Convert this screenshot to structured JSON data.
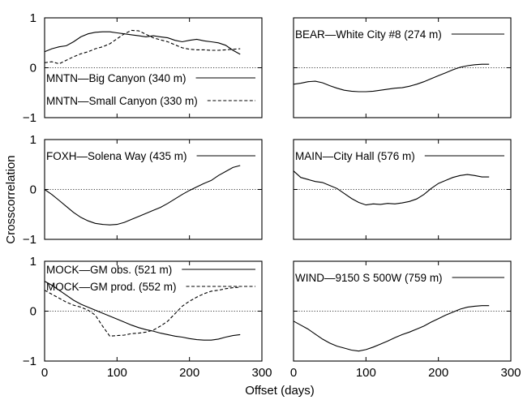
{
  "figure": {
    "ylabel": "Crosscorrelation",
    "xlabel": "Offset (days)"
  },
  "chart_data": [
    {
      "type": "line",
      "xlim": [
        0,
        300
      ],
      "ylim": [
        -1,
        1
      ],
      "xticks": [
        "",
        "",
        "",
        ""
      ],
      "yticks": [
        "−1",
        "0",
        "1"
      ],
      "series": [
        {
          "name": "MNTN—Big Canyon (340 m)",
          "style": "solid",
          "x": [
            0,
            10,
            20,
            30,
            40,
            50,
            60,
            70,
            80,
            90,
            100,
            110,
            120,
            130,
            140,
            150,
            160,
            170,
            180,
            190,
            200,
            210,
            220,
            230,
            240,
            250,
            260,
            270
          ],
          "y": [
            0.32,
            0.38,
            0.42,
            0.44,
            0.52,
            0.62,
            0.68,
            0.71,
            0.72,
            0.72,
            0.7,
            0.68,
            0.66,
            0.64,
            0.62,
            0.64,
            0.62,
            0.6,
            0.55,
            0.52,
            0.55,
            0.57,
            0.54,
            0.52,
            0.5,
            0.45,
            0.35,
            0.27
          ]
        },
        {
          "name": "MNTN—Small Canyon (330 m)",
          "style": "dashed",
          "x": [
            0,
            10,
            20,
            30,
            40,
            50,
            60,
            70,
            80,
            90,
            100,
            110,
            120,
            130,
            140,
            150,
            160,
            170,
            180,
            190,
            200,
            210,
            220,
            230,
            240,
            250,
            260,
            270
          ],
          "y": [
            0.1,
            0.12,
            0.08,
            0.15,
            0.22,
            0.28,
            0.32,
            0.38,
            0.42,
            0.48,
            0.58,
            0.68,
            0.75,
            0.74,
            0.67,
            0.6,
            0.56,
            0.52,
            0.46,
            0.4,
            0.37,
            0.36,
            0.36,
            0.35,
            0.35,
            0.36,
            0.37,
            0.38
          ]
        }
      ]
    },
    {
      "type": "line",
      "xlim": [
        0,
        300
      ],
      "ylim": [
        -1,
        1
      ],
      "xticks": [
        "",
        "",
        "",
        ""
      ],
      "yticks": [
        "",
        "",
        ""
      ],
      "series": [
        {
          "name": "BEAR—White City #8 (274 m)",
          "style": "solid",
          "x": [
            0,
            10,
            20,
            30,
            40,
            50,
            60,
            70,
            80,
            90,
            100,
            110,
            120,
            130,
            140,
            150,
            160,
            170,
            180,
            190,
            200,
            210,
            220,
            230,
            240,
            250,
            260,
            270
          ],
          "y": [
            -0.33,
            -0.31,
            -0.28,
            -0.27,
            -0.3,
            -0.36,
            -0.41,
            -0.45,
            -0.47,
            -0.48,
            -0.48,
            -0.47,
            -0.45,
            -0.43,
            -0.41,
            -0.4,
            -0.37,
            -0.33,
            -0.28,
            -0.22,
            -0.16,
            -0.1,
            -0.04,
            0.01,
            0.04,
            0.06,
            0.07,
            0.07
          ]
        }
      ]
    },
    {
      "type": "line",
      "xlim": [
        0,
        300
      ],
      "ylim": [
        -1,
        1
      ],
      "xticks": [
        "",
        "",
        "",
        ""
      ],
      "yticks": [
        "−1",
        "0",
        "1"
      ],
      "series": [
        {
          "name": "FOXH—Solena Way (435 m)",
          "style": "solid",
          "x": [
            0,
            10,
            20,
            30,
            40,
            50,
            60,
            70,
            80,
            90,
            100,
            110,
            120,
            130,
            140,
            150,
            160,
            170,
            180,
            190,
            200,
            210,
            220,
            230,
            240,
            250,
            260,
            270
          ],
          "y": [
            0.0,
            -0.1,
            -0.22,
            -0.34,
            -0.46,
            -0.56,
            -0.63,
            -0.68,
            -0.7,
            -0.71,
            -0.7,
            -0.66,
            -0.6,
            -0.54,
            -0.48,
            -0.42,
            -0.36,
            -0.28,
            -0.19,
            -0.1,
            -0.02,
            0.05,
            0.12,
            0.18,
            0.28,
            0.36,
            0.44,
            0.48
          ]
        }
      ]
    },
    {
      "type": "line",
      "xlim": [
        0,
        300
      ],
      "ylim": [
        -1,
        1
      ],
      "xticks": [
        "",
        "",
        "",
        ""
      ],
      "yticks": [
        "",
        "",
        ""
      ],
      "series": [
        {
          "name": "MAIN—City Hall (576 m)",
          "style": "solid",
          "x": [
            0,
            10,
            20,
            30,
            40,
            50,
            60,
            70,
            80,
            90,
            100,
            110,
            120,
            130,
            140,
            150,
            160,
            170,
            180,
            190,
            200,
            210,
            220,
            230,
            240,
            250,
            260,
            270
          ],
          "y": [
            0.37,
            0.24,
            0.2,
            0.16,
            0.14,
            0.08,
            0.02,
            -0.08,
            -0.18,
            -0.26,
            -0.31,
            -0.29,
            -0.3,
            -0.28,
            -0.29,
            -0.27,
            -0.24,
            -0.19,
            -0.1,
            0.02,
            0.12,
            0.18,
            0.24,
            0.28,
            0.3,
            0.28,
            0.25,
            0.25
          ]
        }
      ]
    },
    {
      "type": "line",
      "xlim": [
        0,
        300
      ],
      "ylim": [
        -1,
        1
      ],
      "xticks": [
        "0",
        "100",
        "200",
        "300"
      ],
      "yticks": [
        "−1",
        "0",
        "1"
      ],
      "series": [
        {
          "name": "MOCK—GM obs. (521 m)",
          "style": "solid",
          "x": [
            0,
            10,
            20,
            30,
            40,
            50,
            60,
            70,
            80,
            90,
            100,
            110,
            120,
            130,
            140,
            150,
            160,
            170,
            180,
            190,
            200,
            210,
            220,
            230,
            240,
            250,
            260,
            270
          ],
          "y": [
            0.6,
            0.52,
            0.42,
            0.32,
            0.22,
            0.14,
            0.08,
            0.02,
            -0.04,
            -0.1,
            -0.16,
            -0.22,
            -0.28,
            -0.33,
            -0.37,
            -0.4,
            -0.44,
            -0.47,
            -0.5,
            -0.52,
            -0.55,
            -0.57,
            -0.58,
            -0.58,
            -0.56,
            -0.52,
            -0.49,
            -0.47
          ]
        },
        {
          "name": "MOCK—GM prod. (552 m)",
          "style": "dashed",
          "x": [
            0,
            10,
            20,
            30,
            40,
            50,
            60,
            70,
            80,
            90,
            100,
            110,
            120,
            130,
            140,
            150,
            160,
            170,
            180,
            190,
            200,
            210,
            220,
            230,
            240,
            250,
            260,
            270
          ],
          "y": [
            0.42,
            0.34,
            0.26,
            0.18,
            0.12,
            0.08,
            0.02,
            -0.08,
            -0.3,
            -0.5,
            -0.49,
            -0.48,
            -0.45,
            -0.44,
            -0.42,
            -0.38,
            -0.3,
            -0.2,
            -0.05,
            0.1,
            0.2,
            0.28,
            0.35,
            0.4,
            0.42,
            0.45,
            0.47,
            0.48
          ]
        }
      ]
    },
    {
      "type": "line",
      "xlim": [
        0,
        300
      ],
      "ylim": [
        -1,
        1
      ],
      "xticks": [
        "0",
        "100",
        "200",
        "300"
      ],
      "yticks": [
        "",
        "",
        ""
      ],
      "series": [
        {
          "name": "WIND—9150 S 500W (759 m)",
          "style": "solid",
          "x": [
            0,
            10,
            20,
            30,
            40,
            50,
            60,
            70,
            80,
            90,
            100,
            110,
            120,
            130,
            140,
            150,
            160,
            170,
            180,
            190,
            200,
            210,
            220,
            230,
            240,
            250,
            260,
            270
          ],
          "y": [
            -0.2,
            -0.28,
            -0.36,
            -0.46,
            -0.56,
            -0.64,
            -0.7,
            -0.74,
            -0.78,
            -0.8,
            -0.77,
            -0.72,
            -0.66,
            -0.6,
            -0.53,
            -0.47,
            -0.42,
            -0.36,
            -0.3,
            -0.22,
            -0.15,
            -0.08,
            -0.02,
            0.04,
            0.08,
            0.1,
            0.11,
            0.11
          ]
        }
      ]
    }
  ]
}
